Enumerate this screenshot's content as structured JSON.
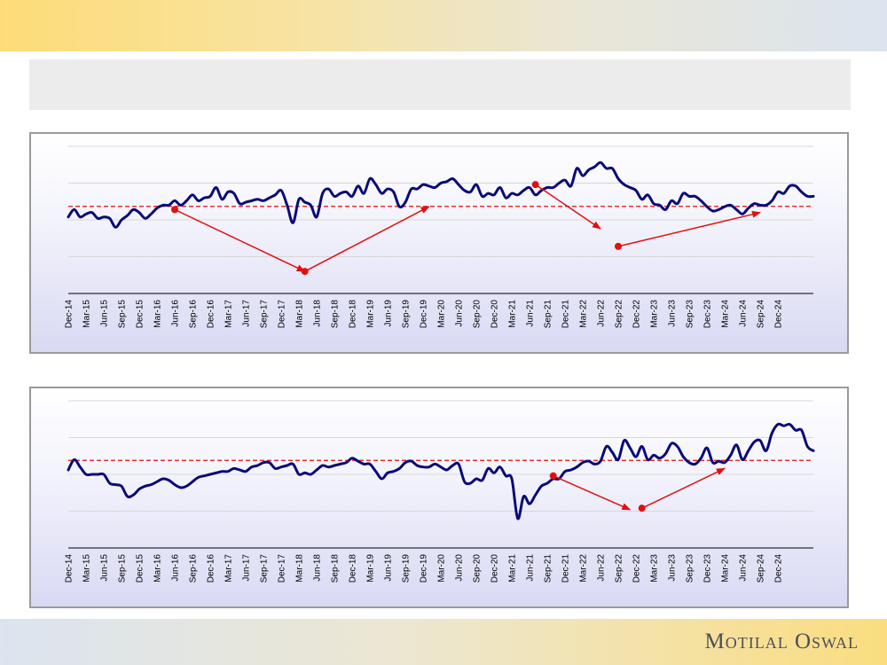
{
  "brand": {
    "name": "Motilal Oswal"
  },
  "title": "",
  "colors": {
    "line": "#0a0a78",
    "average": "#e01010",
    "trend_arrow": "#e01010",
    "grid": "#d8d8d8"
  },
  "x_labels": [
    "Dec-14",
    "Mar-15",
    "Jun-15",
    "Sep-15",
    "Dec-15",
    "Mar-16",
    "Jun-16",
    "Sep-16",
    "Dec-16",
    "Mar-17",
    "Jun-17",
    "Sep-17",
    "Dec-17",
    "Mar-18",
    "Jun-18",
    "Sep-18",
    "Dec-18",
    "Mar-19",
    "Jun-19",
    "Sep-19",
    "Dec-19",
    "Mar-20",
    "Jun-20",
    "Sep-20",
    "Dec-20",
    "Mar-21",
    "Jun-21",
    "Sep-21",
    "Dec-21",
    "Mar-22",
    "Jun-22",
    "Sep-22",
    "Dec-22",
    "Mar-23",
    "Jun-23",
    "Sep-23",
    "Dec-23",
    "Mar-24",
    "Jun-24",
    "Sep-24",
    "Dec-24"
  ],
  "chart_data": [
    {
      "type": "line",
      "title": "",
      "xlabel": "",
      "ylabel": "",
      "ylim": [
        0,
        100
      ],
      "grid": true,
      "average": 59.2,
      "series": [
        {
          "values": [
            52,
            57,
            52,
            54,
            55,
            51,
            52,
            51,
            45,
            50,
            53,
            57,
            55,
            51,
            54,
            58,
            60,
            60,
            63,
            60,
            63,
            67,
            63,
            65,
            66,
            72,
            64,
            69,
            68,
            61,
            62,
            63,
            64,
            63,
            65,
            67,
            70,
            60,
            48,
            64,
            62,
            60,
            52,
            68,
            71,
            66,
            68,
            69,
            66,
            73,
            68,
            78,
            74,
            68,
            71,
            69,
            59,
            62,
            71,
            71,
            74,
            73,
            72,
            75,
            76,
            78,
            74,
            70,
            69,
            74,
            66,
            68,
            67,
            72,
            65,
            68,
            67,
            70,
            72,
            67,
            70,
            72,
            72,
            75,
            77,
            73,
            85,
            80,
            84,
            86,
            89,
            85,
            85,
            78,
            74,
            72,
            70,
            64,
            67,
            61,
            60,
            57,
            63,
            61,
            68,
            66,
            66,
            63,
            59,
            56,
            57,
            59,
            60,
            57,
            54,
            58,
            61,
            60,
            60,
            63,
            69,
            68,
            73,
            73,
            69,
            66,
            66
          ]
        }
      ],
      "trend_arrows": [
        {
          "from": [
            "Jun-16",
            57
          ],
          "to": [
            "Apr-18",
            15
          ]
        },
        {
          "from": [
            "Apr-18",
            15
          ],
          "to": [
            "Jan-20",
            59
          ]
        },
        {
          "from": [
            "Jul-21",
            74
          ],
          "to": [
            "Jun-22",
            44
          ]
        },
        {
          "from": [
            "Sep-22",
            32
          ],
          "to": [
            "Sep-24",
            55
          ]
        }
      ]
    },
    {
      "type": "line",
      "title": "",
      "xlabel": "",
      "ylabel": "",
      "ylim": [
        0,
        100
      ],
      "grid": true,
      "average": 59.5,
      "series": [
        {
          "values": [
            53,
            60,
            55,
            50,
            50,
            50,
            50,
            44,
            43,
            42,
            35,
            36,
            40,
            42,
            43,
            45,
            47,
            46,
            43,
            41,
            42,
            45,
            48,
            49,
            50,
            51,
            52,
            52,
            54,
            53,
            52,
            55,
            56,
            58,
            58,
            54,
            55,
            56,
            57,
            50,
            51,
            50,
            53,
            56,
            55,
            56,
            57,
            58,
            61,
            59,
            57,
            57,
            52,
            47,
            51,
            52,
            54,
            58,
            59,
            56,
            55,
            55,
            57,
            55,
            53,
            56,
            57,
            45,
            44,
            47,
            46,
            54,
            51,
            55,
            49,
            47,
            20,
            35,
            30,
            36,
            42,
            44,
            47,
            47,
            52,
            53,
            55,
            58,
            59,
            57,
            59,
            69,
            65,
            60,
            73,
            68,
            62,
            69,
            60,
            63,
            61,
            64,
            71,
            69,
            62,
            58,
            57,
            61,
            68,
            58,
            59,
            58,
            63,
            70,
            60,
            66,
            72,
            73,
            66,
            78,
            84,
            83,
            84,
            80,
            80,
            69,
            66
          ]
        }
      ],
      "trend_arrows": [
        {
          "from": [
            "Oct-21",
            49
          ],
          "to": [
            "Nov-22",
            26
          ]
        },
        {
          "from": [
            "Jan-23",
            27
          ],
          "to": [
            "Mar-24",
            54
          ]
        }
      ]
    }
  ]
}
